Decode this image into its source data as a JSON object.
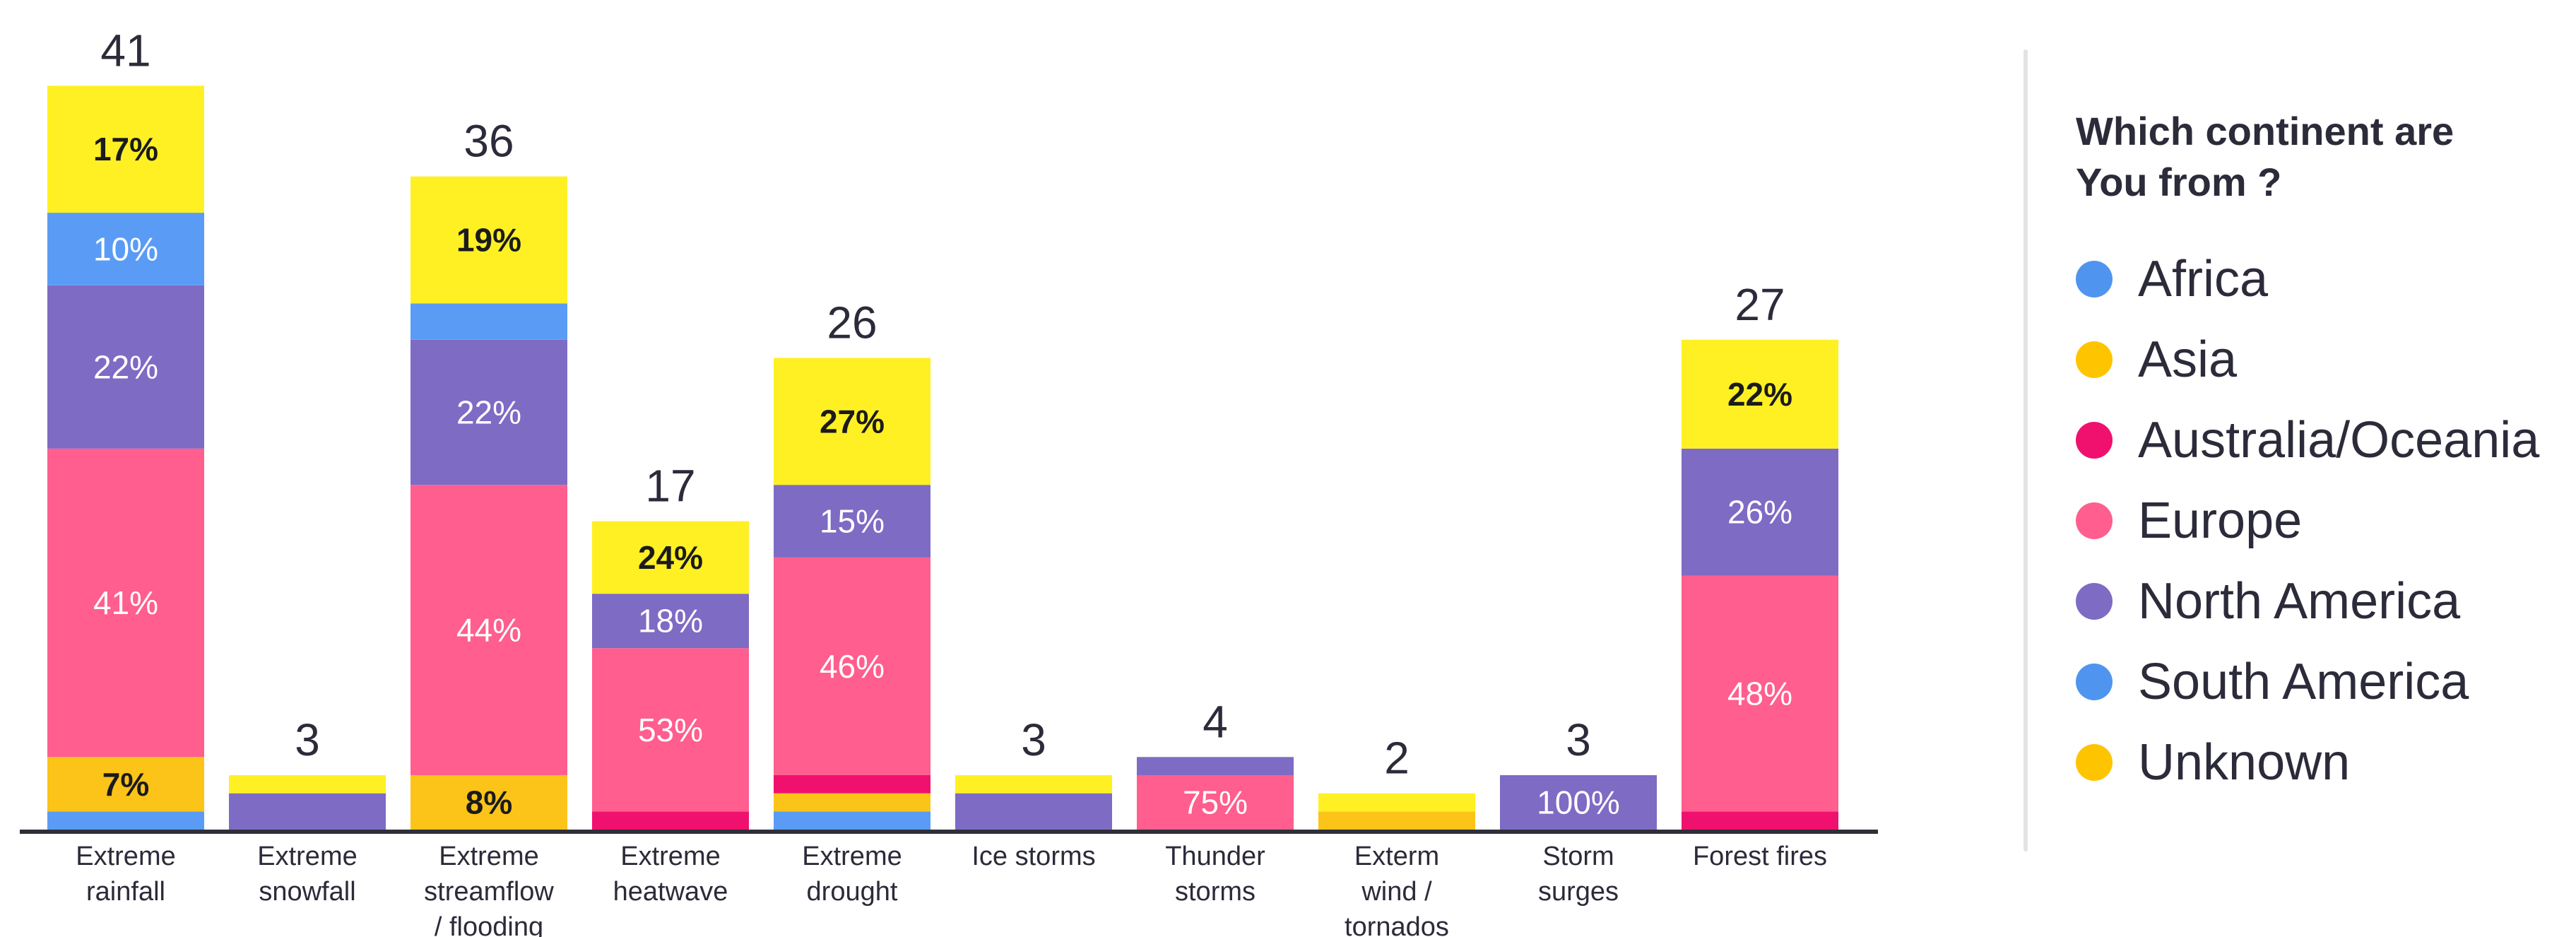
{
  "chart_data": {
    "type": "bar",
    "stacked": true,
    "categories": [
      {
        "label": [
          "Extreme",
          "rainfall"
        ],
        "total": 41
      },
      {
        "label": [
          "Extreme",
          "snowfall"
        ],
        "total": 3
      },
      {
        "label": [
          "Extreme",
          "streamflow",
          "/ flooding"
        ],
        "total": 36
      },
      {
        "label": [
          "Extreme",
          "heatwave"
        ],
        "total": 17
      },
      {
        "label": [
          "Extreme",
          "drought"
        ],
        "total": 26
      },
      {
        "label": [
          "Ice storms"
        ],
        "total": 3
      },
      {
        "label": [
          "Thunder",
          "storms"
        ],
        "total": 4
      },
      {
        "label": [
          "Exterm",
          "wind /",
          "tornados"
        ],
        "total": 2
      },
      {
        "label": [
          "Storm",
          "surges"
        ],
        "total": 3
      },
      {
        "label": [
          "Forest fires"
        ],
        "total": 27
      }
    ],
    "series": [
      {
        "name": "Africa",
        "color": "#5a9cf5",
        "values": [
          1,
          0,
          0,
          0,
          1,
          0,
          0,
          0,
          0,
          0
        ]
      },
      {
        "name": "Asia",
        "color": "#fcc419",
        "values": [
          3,
          0,
          3,
          0,
          1,
          0,
          0,
          1,
          0,
          0
        ]
      },
      {
        "name": "Australia/Oceania",
        "color": "#f0116f",
        "values": [
          0,
          0,
          0,
          1,
          1,
          0,
          0,
          0,
          0,
          1
        ]
      },
      {
        "name": "Europe",
        "color": "#ff5e8e",
        "values": [
          17,
          0,
          16,
          9,
          12,
          0,
          3,
          0,
          0,
          13
        ]
      },
      {
        "name": "North America",
        "color": "#7e6bc4",
        "values": [
          9,
          2,
          8,
          3,
          4,
          2,
          1,
          0,
          3,
          7
        ]
      },
      {
        "name": "South America",
        "color": "#5a9cf5",
        "values": [
          4,
          0,
          2,
          0,
          0,
          0,
          0,
          0,
          0,
          0
        ]
      },
      {
        "name": "Unknown",
        "color": "#fff024",
        "values": [
          7,
          1,
          7,
          4,
          7,
          1,
          0,
          1,
          0,
          6
        ]
      }
    ],
    "segment_labels": [
      [
        "",
        "7%",
        "",
        "41%",
        "22%",
        "10%",
        "17%"
      ],
      [
        "",
        "",
        "",
        "",
        "",
        "",
        ""
      ],
      [
        "",
        "8%",
        "",
        "44%",
        "22%",
        "",
        "19%"
      ],
      [
        "",
        "",
        "",
        "53%",
        "18%",
        "",
        "24%"
      ],
      [
        "",
        "",
        "",
        "46%",
        "15%",
        "",
        "27%"
      ],
      [
        "",
        "",
        "",
        "",
        "",
        "",
        ""
      ],
      [
        "",
        "",
        "",
        "75%",
        "",
        "",
        ""
      ],
      [
        "",
        "",
        "",
        "",
        "",
        "",
        ""
      ],
      [
        "",
        "",
        "",
        "",
        "100%",
        "",
        ""
      ],
      [
        "",
        "",
        "",
        "48%",
        "26%",
        "",
        "22%"
      ]
    ],
    "segment_label_colors": [
      "#ffffff",
      "#1b1b1b",
      "#ffffff",
      "#ffffff",
      "#ffffff",
      "#ffffff",
      "#1b1b1b"
    ],
    "title": "",
    "xlabel": "",
    "ylabel": "",
    "ylim": [
      0,
      43
    ],
    "grid": false,
    "legend_position": "right"
  },
  "legend": {
    "title": "Which continent are\nYou from ?",
    "items": [
      {
        "label": "Africa",
        "color": "#4f95f0"
      },
      {
        "label": "Asia",
        "color": "#ffc400"
      },
      {
        "label": "Australia/Oceania",
        "color": "#f0116f"
      },
      {
        "label": "Europe",
        "color": "#ff5e8e"
      },
      {
        "label": "North America",
        "color": "#7e6bc4"
      },
      {
        "label": "South America",
        "color": "#4f95f0"
      },
      {
        "label": "Unknown",
        "color": "#ffc400"
      }
    ]
  }
}
